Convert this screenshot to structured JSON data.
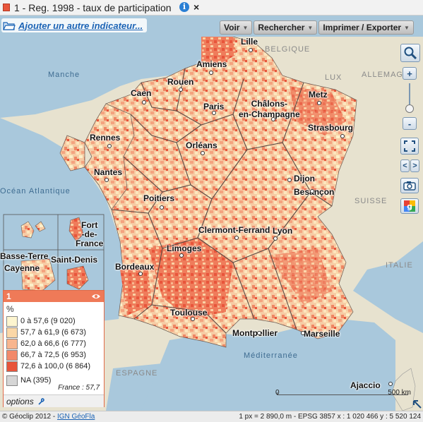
{
  "window": {
    "title": "1 - Reg. 1998 - taux de participation",
    "info_glyph": "i",
    "close_glyph": "×",
    "accent_color": "#e8553b"
  },
  "subbar": {
    "add_indicator": "Ajouter un autre indicateur..."
  },
  "toolbar": {
    "view": "Voir",
    "search": "Rechercher",
    "print_export": "Imprimer / Exporter"
  },
  "map": {
    "seas": {
      "manche": "Manche",
      "atlantique": "Océan Atlantique",
      "mediterranee": "Méditerranée"
    },
    "countries": {
      "belgique": "BELGIQUE",
      "lux": "LUX",
      "allemagne": "ALLEMAGNE",
      "suisse": "SUISSE",
      "italie": "ITALIE",
      "espagne": "ESPAGNE"
    },
    "cities": {
      "lille": "Lille",
      "amiens": "Amiens",
      "rouen": "Rouen",
      "caen": "Caen",
      "paris": "Paris",
      "chalons": "Châlons-\nen-Champagne",
      "metz": "Metz",
      "strasbourg": "Strasbourg",
      "rennes": "Rennes",
      "orleans": "Orléans",
      "nantes": "Nantes",
      "dijon": "Dijon",
      "besancon": "Besançon",
      "poitiers": "Poitiers",
      "clermont": "Clermont-Ferrand",
      "lyon": "Lyon",
      "limoges": "Limoges",
      "bordeaux": "Bordeaux",
      "toulouse": "Toulouse",
      "montpellier": "Montpellier",
      "marseille": "Marseille",
      "ajaccio": "Ajaccio"
    },
    "overseas": {
      "fortdefrance": "Fort\n-de-\nFrance",
      "basseterre": "Basse-Terre",
      "cayenne": "Cayenne",
      "saintdenis": "Saint-Denis"
    }
  },
  "legend": {
    "layer_number": "1",
    "unit": "%",
    "classes": [
      {
        "label": "0 à 57,6 (9 020)",
        "color": "#fdf5cf"
      },
      {
        "label": "57,7 à 61,9 (6 673)",
        "color": "#fbd7a7"
      },
      {
        "label": "62,0 à 66,6 (6 777)",
        "color": "#f8b58e"
      },
      {
        "label": "66,7 à 72,5 (6 953)",
        "color": "#f2896a"
      },
      {
        "label": "72,6 à 100,0 (6 864)",
        "color": "#e8553b"
      },
      {
        "label": "NA (395)",
        "color": "#d6d6d6"
      }
    ],
    "france_value": "France : 57,7",
    "options": "options"
  },
  "scale": {
    "start": "0",
    "end": "500 km"
  },
  "footer": {
    "copyright": "© Géoclip 2012 - ",
    "ign_link": "IGN GéoFla",
    "info": "1 px = 2 890,0 m - EPSG 3857  x : 1 020 466   y : 5 520 124"
  },
  "icons": {
    "zoom_magnifier": "magnifier-icon",
    "zoom_in": "+",
    "zoom_out": "-",
    "fullscreen": "fullscreen-icon",
    "prev": "<",
    "next": ">",
    "snapshot": "camera-icon",
    "google": "google-icon"
  }
}
